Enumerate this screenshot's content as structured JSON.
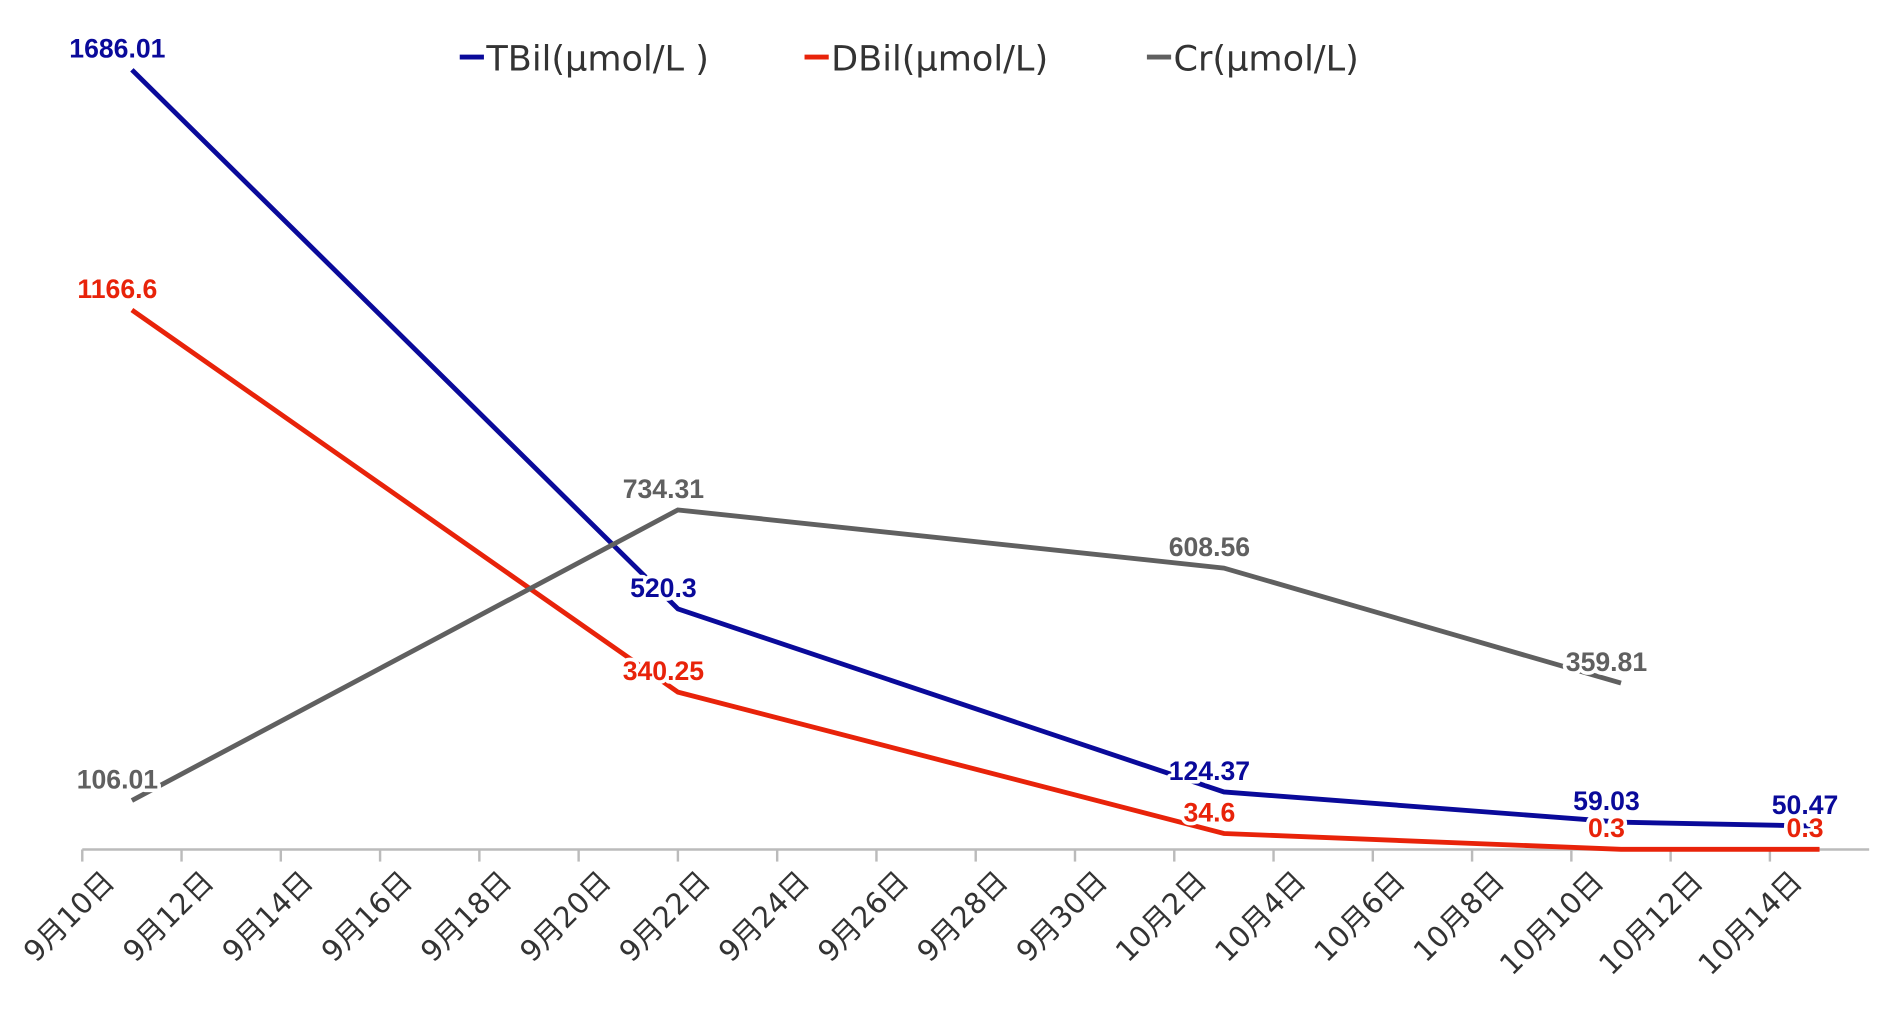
{
  "chart_data": {
    "type": "line",
    "x": [
      "09-11",
      "09-22",
      "10-03",
      "10-11",
      "10-15"
    ],
    "series": [
      {
        "name": "TBil(μmol/L )",
        "color": "#0a0a9a",
        "values": [
          1686.01,
          520.3,
          124.37,
          59.03,
          50.47
        ]
      },
      {
        "name": "DBil(μmol/L)",
        "color": "#e8230a",
        "values": [
          1166.6,
          340.25,
          34.6,
          0.3,
          0.3
        ]
      },
      {
        "name": "Cr(μmol/L)",
        "color": "#606060",
        "values": [
          106.01,
          734.31,
          608.56,
          359.81,
          null
        ]
      }
    ],
    "xlim": [
      "09-10",
      "10-16"
    ],
    "xticks": [
      {
        "value": "09-10",
        "label": "9月10日"
      },
      {
        "value": "09-12",
        "label": "9月12日"
      },
      {
        "value": "09-14",
        "label": "9月14日"
      },
      {
        "value": "09-16",
        "label": "9月16日"
      },
      {
        "value": "09-18",
        "label": "9月18日"
      },
      {
        "value": "09-20",
        "label": "9月20日"
      },
      {
        "value": "09-22",
        "label": "9月22日"
      },
      {
        "value": "09-24",
        "label": "9月24日"
      },
      {
        "value": "09-26",
        "label": "9月26日"
      },
      {
        "value": "09-28",
        "label": "9月28日"
      },
      {
        "value": "09-30",
        "label": "9月30日"
      },
      {
        "value": "10-02",
        "label": "10月2日"
      },
      {
        "value": "10-04",
        "label": "10月4日"
      },
      {
        "value": "10-06",
        "label": "10月6日"
      },
      {
        "value": "10-08",
        "label": "10月8日"
      },
      {
        "value": "10-10",
        "label": "10月10日"
      },
      {
        "value": "10-12",
        "label": "10月12日"
      },
      {
        "value": "10-14",
        "label": "10月14日"
      }
    ],
    "ylim": [
      0,
      1800
    ],
    "legend": "top"
  }
}
